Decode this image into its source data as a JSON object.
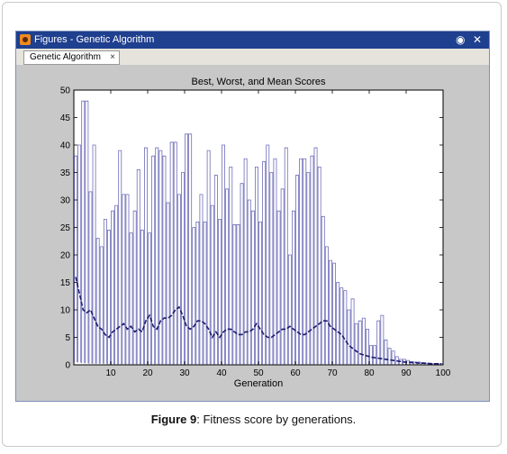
{
  "window": {
    "title": "Figures - Genetic Algorithm",
    "tab_label": "Genetic Algorithm",
    "tab_close": "×",
    "dock_glyph": "◉",
    "close_glyph": "✕"
  },
  "caption": {
    "label": "Figure 9",
    "text": ": Fitness score by generations."
  },
  "chart_data": {
    "type": "bar",
    "title": "Best, Worst, and Mean Scores",
    "xlabel": "Generation",
    "ylabel": "",
    "xlim": [
      0,
      100
    ],
    "ylim": [
      0,
      50
    ],
    "xticks": [
      10,
      20,
      30,
      40,
      50,
      60,
      70,
      80,
      90,
      100
    ],
    "yticks": [
      0,
      5,
      10,
      15,
      20,
      25,
      30,
      35,
      40,
      45,
      50
    ],
    "grid": false,
    "colors": {
      "bars": "#3c3ca0",
      "mean_line": "#1e1e6e",
      "axes_bg": "#ffffff",
      "figure_bg": "#c8c8c8"
    },
    "series": [
      {
        "name": "",
        "style": "range-bars",
        "best": [
          0.5,
          0.4,
          0.3,
          0.3,
          0.2,
          0.2,
          0.2,
          0.2,
          0.2,
          0.1,
          0.1,
          0.1,
          0.1,
          0.1,
          0.1,
          0.1,
          0.1,
          0.1,
          0.1,
          0.1,
          0.1,
          0.1,
          0.1,
          0.1,
          0.1,
          0.1,
          0.1,
          0.1,
          0.1,
          0.1,
          0.1,
          0.1,
          0.1,
          0.1,
          0.1,
          0.1,
          0.1,
          0.1,
          0.1,
          0.1,
          0.1,
          0.1,
          0.1,
          0.1,
          0.1,
          0.1,
          0.1,
          0.1,
          0.1,
          0.1,
          0.1,
          0.1,
          0.1,
          0.1,
          0.1,
          0.1,
          0.1,
          0.1,
          0.1,
          0.1,
          0.1,
          0.1,
          0.1,
          0.1,
          0.1,
          0.1,
          0.1,
          0.1,
          0.1,
          0.1,
          0.1,
          0.1,
          0.1,
          0.1,
          0.1,
          0.1,
          0.1,
          0.1,
          0.1,
          0.1,
          0.1,
          0.1,
          0.1,
          0.1,
          0.1,
          0.1,
          0.1,
          0.1,
          0.1,
          0.1,
          0.1,
          0.1,
          0.1,
          0.1,
          0.1,
          0.1,
          0.1,
          0.1,
          0.1,
          0.1
        ],
        "worst": [
          38,
          40,
          48,
          48,
          31.5,
          40,
          23,
          21.5,
          26.5,
          24.5,
          28,
          29,
          39,
          31,
          31,
          24,
          28,
          35.5,
          24.5,
          39.5,
          24,
          38,
          39.5,
          39,
          38,
          29.5,
          40.5,
          40.5,
          31,
          35,
          42,
          42,
          25,
          26,
          31,
          26,
          39,
          29,
          34.5,
          26.5,
          40,
          32,
          36,
          25.5,
          25.5,
          33,
          37.5,
          30,
          28,
          36,
          26,
          37,
          40,
          35,
          37.5,
          28,
          32,
          39.5,
          20,
          28,
          34.5,
          37.5,
          37.5,
          35,
          38,
          39.5,
          36,
          27,
          21.5,
          19,
          18.5,
          15,
          14,
          13.5,
          10,
          12,
          7.5,
          8,
          8.5,
          6.5,
          3.5,
          3.5,
          8,
          9,
          4.5,
          3,
          2.5,
          1.5,
          1,
          1,
          0.8,
          0.6,
          0.5,
          0.5,
          0.4,
          0.3,
          0.3,
          0.2,
          0.2,
          0.2
        ],
        "mean": [
          16,
          13,
          10,
          9.5,
          10,
          8.5,
          7,
          6.5,
          5.5,
          5,
          6,
          6.5,
          7,
          7.5,
          6.5,
          7,
          6,
          6.5,
          6,
          8,
          9,
          7,
          6.5,
          8,
          8.5,
          8.5,
          9,
          10,
          10.5,
          9,
          7,
          6.5,
          7,
          8,
          8,
          7.5,
          6.5,
          5,
          6,
          5,
          6,
          6.5,
          6.5,
          6,
          5.5,
          5.5,
          6,
          6,
          6.5,
          7.5,
          6.5,
          5.5,
          5,
          5,
          5.5,
          6,
          6.5,
          6.5,
          7,
          6.5,
          6,
          5.5,
          5.5,
          6,
          6.5,
          7,
          7.5,
          8,
          8,
          7,
          6.5,
          6,
          5.5,
          4.5,
          3.5,
          3,
          2.5,
          2,
          1.8,
          1.6,
          1.4,
          1.3,
          1.2,
          1.1,
          1,
          0.9,
          0.8,
          0.7,
          0.6,
          0.5,
          0.5,
          0.4,
          0.4,
          0.3,
          0.3,
          0.3,
          0.2,
          0.2,
          0.2,
          0.2
        ]
      }
    ]
  }
}
